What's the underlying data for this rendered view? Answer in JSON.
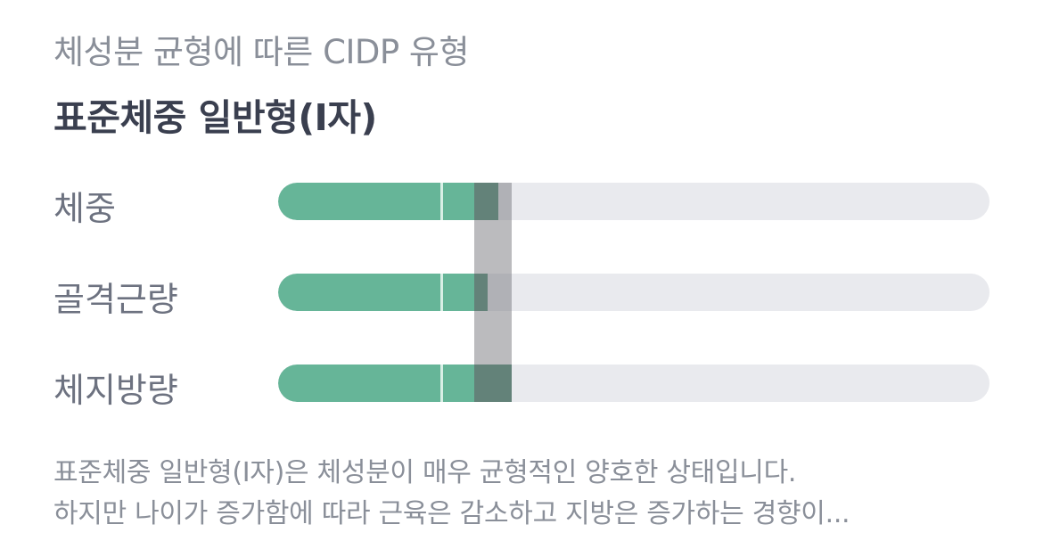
{
  "header": {
    "subtitle": "체성분 균형에 따른 CIDP 유형",
    "title": "표준체중 일반형(I자)"
  },
  "rows": [
    {
      "label": "체중",
      "level": 0.31
    },
    {
      "label": "골격근량",
      "level": 0.295
    },
    {
      "label": "체지방량",
      "level": 0.328
    }
  ],
  "colors": {
    "fill": "#66b598",
    "fill_dark": "#4f8d74",
    "track": "#e9eaee",
    "band": "#9a9a9e"
  },
  "description": {
    "line1": "표준체중 일반형(I자)은 체성분이 매우 균형적인 양호한 상태입니다.",
    "line2": "하지만 나이가 증가함에 따라 근육은 감소하고 지방은 증가하는 경향이..."
  }
}
